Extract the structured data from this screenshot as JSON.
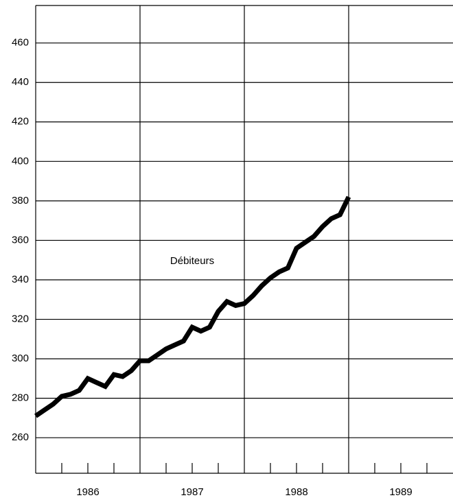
{
  "chart_data": {
    "type": "line",
    "annotation": "Débiteurs",
    "x": [
      1986,
      1986.083,
      1986.167,
      1986.25,
      1986.333,
      1986.417,
      1986.5,
      1986.583,
      1986.667,
      1986.75,
      1986.833,
      1986.917,
      1987,
      1987.083,
      1987.167,
      1987.25,
      1987.333,
      1987.417,
      1987.5,
      1987.583,
      1987.667,
      1987.75,
      1987.833,
      1987.917,
      1988,
      1988.083,
      1988.167,
      1988.25,
      1988.333,
      1988.417,
      1988.5,
      1988.583,
      1988.667,
      1988.75,
      1988.833,
      1988.917,
      1989
    ],
    "series": [
      {
        "color": "#000000",
        "values": [
          271,
          274,
          277,
          281,
          282,
          284,
          290,
          288,
          286,
          292,
          291,
          294,
          299,
          299,
          302,
          305,
          307,
          309,
          316,
          314,
          316,
          324,
          329,
          327,
          328,
          332,
          337,
          341,
          344,
          346,
          356,
          359,
          362,
          367,
          371,
          373,
          382
        ]
      }
    ],
    "xlim": [
      1986,
      1990
    ],
    "xticks": [
      {
        "value": 1986.5,
        "label": "1986"
      },
      {
        "value": 1987.5,
        "label": "1987"
      },
      {
        "value": 1988.5,
        "label": "1988"
      },
      {
        "value": 1989.5,
        "label": "1989"
      }
    ],
    "xgrid": [
      1987,
      1988,
      1989
    ],
    "xminor": [
      1986.25,
      1986.5,
      1986.75,
      1987.25,
      1987.5,
      1987.75,
      1988.25,
      1988.5,
      1988.75,
      1989.25,
      1989.5,
      1989.75
    ],
    "ylim": [
      242,
      479
    ],
    "yticks": [
      260,
      280,
      300,
      320,
      340,
      360,
      380,
      400,
      420,
      440,
      460
    ],
    "grid": true
  }
}
